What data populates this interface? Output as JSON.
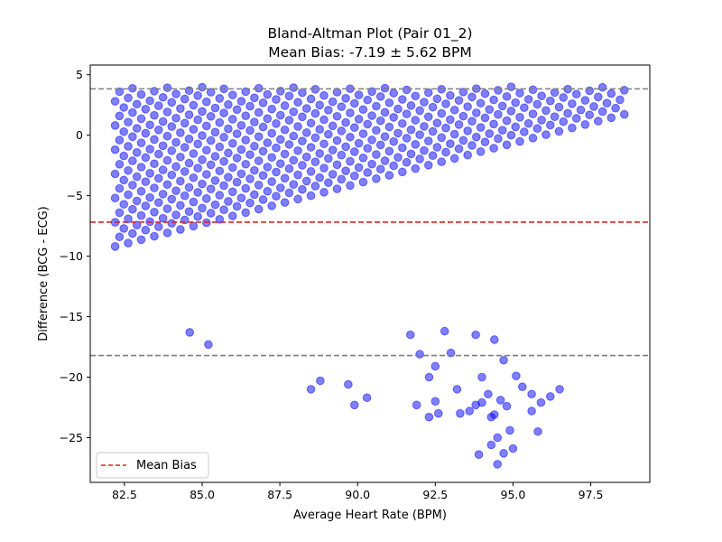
{
  "chart_data": {
    "type": "scatter",
    "title": "Bland-Altman Plot (Pair 01_2)",
    "subtitle": "Mean Bias: -7.19 ± 5.62 BPM",
    "xlabel": "Average Heart Rate (BPM)",
    "ylabel": "Difference (BCG - ECG)",
    "xlim": [
      81.4,
      99.4
    ],
    "ylim": [
      -28.7,
      5.8
    ],
    "x_ticks": [
      82.5,
      85.0,
      87.5,
      90.0,
      92.5,
      95.0,
      97.5
    ],
    "x_tick_labels": [
      "82.5",
      "85.0",
      "87.5",
      "90.0",
      "92.5",
      "95.0",
      "97.5"
    ],
    "y_ticks": [
      5,
      0,
      -5,
      -10,
      -15,
      -20,
      -25
    ],
    "y_tick_labels": [
      "5",
      "0",
      "−5",
      "−10",
      "−15",
      "−20",
      "−25"
    ],
    "mean_bias": -7.19,
    "upper_loa": 3.83,
    "lower_loa": -18.21,
    "legend": {
      "position": "lower-left",
      "entries": [
        {
          "label": "Mean Bias"
        }
      ]
    },
    "grid": false,
    "colors": {
      "points": "#0000ff",
      "mean_line": "#d62728",
      "loa_line": "#7f7f7f"
    },
    "band_params": {
      "slope": 0.6667,
      "intercepts": [
        -64.0,
        -63.3,
        -62.7,
        -62.0,
        -61.3,
        -60.7,
        -60.0,
        -59.3,
        -58.7,
        -58.0,
        -57.3,
        -56.7,
        -56.0,
        -55.3,
        -54.7,
        -54.0,
        -53.3,
        -52.7,
        -52.0,
        -51.3,
        -50.7,
        -50.0,
        -49.3,
        -48.7,
        -48.0,
        -47.3,
        -46.7,
        -46.0,
        -45.3,
        -44.7,
        -44.0,
        -43.3,
        -42.7,
        -42.0
      ],
      "x_min": 82.2,
      "x_max": 98.6,
      "y_min": -17.4,
      "y_max": 4.0,
      "x_step": 0.42
    },
    "outlier_points": [
      [
        88.5,
        -21.0
      ],
      [
        88.8,
        -20.3
      ],
      [
        89.7,
        -20.6
      ],
      [
        89.9,
        -22.3
      ],
      [
        90.3,
        -21.7
      ],
      [
        91.9,
        -22.3
      ],
      [
        92.0,
        -18.1
      ],
      [
        92.3,
        -20.0
      ],
      [
        92.5,
        -22.0
      ],
      [
        92.3,
        -23.3
      ],
      [
        92.6,
        -23.0
      ],
      [
        92.5,
        -19.1
      ],
      [
        93.0,
        -18.0
      ],
      [
        93.2,
        -21.0
      ],
      [
        93.3,
        -23.0
      ],
      [
        93.6,
        -22.8
      ],
      [
        93.8,
        -16.5
      ],
      [
        93.8,
        -22.3
      ],
      [
        93.9,
        -26.4
      ],
      [
        94.0,
        -20.0
      ],
      [
        94.0,
        -22.1
      ],
      [
        94.2,
        -21.4
      ],
      [
        94.3,
        -25.6
      ],
      [
        94.3,
        -23.3
      ],
      [
        94.4,
        -23.1
      ],
      [
        94.5,
        -27.2
      ],
      [
        94.5,
        -25.0
      ],
      [
        94.6,
        -21.9
      ],
      [
        94.7,
        -18.6
      ],
      [
        94.7,
        -26.3
      ],
      [
        94.8,
        -22.4
      ],
      [
        94.9,
        -24.4
      ],
      [
        95.0,
        -25.9
      ],
      [
        95.1,
        -19.9
      ],
      [
        95.3,
        -20.8
      ],
      [
        95.6,
        -22.8
      ],
      [
        95.6,
        -21.4
      ],
      [
        95.8,
        -24.5
      ],
      [
        95.9,
        -22.1
      ],
      [
        96.2,
        -21.6
      ],
      [
        96.5,
        -21.0
      ],
      [
        94.4,
        -16.9
      ],
      [
        92.8,
        -16.2
      ],
      [
        91.7,
        -16.5
      ],
      [
        84.6,
        -16.3
      ],
      [
        85.2,
        -17.3
      ]
    ]
  }
}
